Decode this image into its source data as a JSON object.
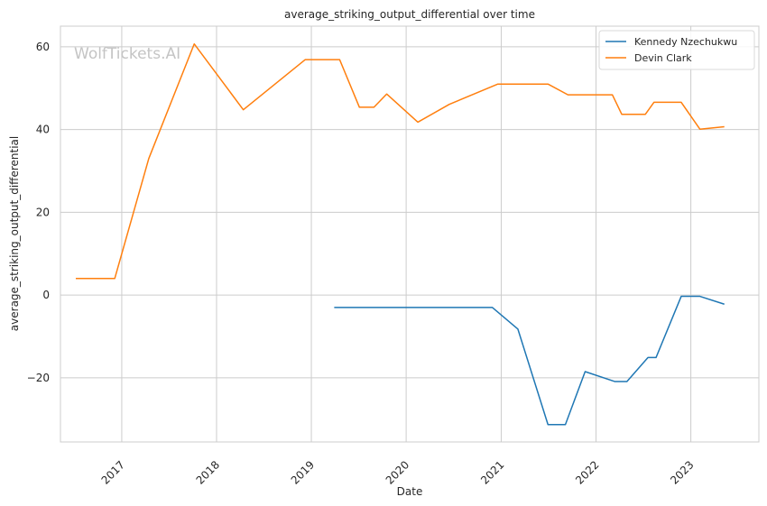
{
  "chart_data": {
    "type": "line",
    "title": "average_striking_output_differential over time",
    "xlabel": "Date",
    "ylabel": "average_striking_output_differential",
    "watermark": "WolfTickets.AI",
    "x_ticks": [
      "2017",
      "2018",
      "2019",
      "2020",
      "2021",
      "2022",
      "2023"
    ],
    "y_ticks": [
      -20,
      0,
      20,
      40,
      60
    ],
    "ylim": [
      -35.5,
      65
    ],
    "xlim": [
      "2016-05-10",
      "2023-09-20"
    ],
    "grid": true,
    "legend_position": "top-right",
    "series": [
      {
        "name": "Kennedy Nzechukwu",
        "color": "#1f77b4",
        "points": [
          [
            "2019-03-30",
            -3
          ],
          [
            "2020-11-28",
            -3
          ],
          [
            "2021-03-06",
            -8.2
          ],
          [
            "2021-06-30",
            -31.3
          ],
          [
            "2021-09-05",
            -31.3
          ],
          [
            "2021-11-20",
            -18.5
          ],
          [
            "2022-03-15",
            -20.9
          ],
          [
            "2022-04-30",
            -20.9
          ],
          [
            "2022-07-20",
            -15.1
          ],
          [
            "2022-08-20",
            -15.1
          ],
          [
            "2022-11-25",
            -0.3
          ],
          [
            "2023-02-05",
            -0.3
          ],
          [
            "2023-05-10",
            -2.2
          ]
        ]
      },
      {
        "name": "Devin Clark",
        "color": "#ff7f0e",
        "points": [
          [
            "2016-07-08",
            4
          ],
          [
            "2016-12-05",
            4
          ],
          [
            "2017-04-15",
            33
          ],
          [
            "2017-10-07",
            60.7
          ],
          [
            "2018-04-14",
            44.8
          ],
          [
            "2018-12-08",
            56.9
          ],
          [
            "2019-04-20",
            56.9
          ],
          [
            "2019-07-05",
            45.4
          ],
          [
            "2019-08-30",
            45.4
          ],
          [
            "2019-10-18",
            48.6
          ],
          [
            "2020-02-15",
            41.8
          ],
          [
            "2020-06-15",
            46.1
          ],
          [
            "2020-12-19",
            51
          ],
          [
            "2021-06-30",
            51
          ],
          [
            "2021-09-15",
            48.4
          ],
          [
            "2022-03-05",
            48.4
          ],
          [
            "2022-04-10",
            43.7
          ],
          [
            "2022-07-10",
            43.7
          ],
          [
            "2022-08-12",
            46.6
          ],
          [
            "2022-11-25",
            46.6
          ],
          [
            "2023-02-05",
            40.1
          ],
          [
            "2023-05-10",
            40.7
          ]
        ]
      }
    ]
  }
}
